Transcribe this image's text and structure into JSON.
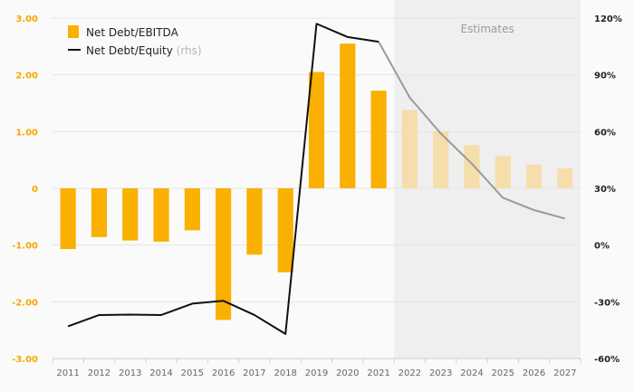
{
  "chart_data": {
    "type": "bar",
    "categories": [
      "2011",
      "2012",
      "2013",
      "2014",
      "2015",
      "2016",
      "2017",
      "2018",
      "2019",
      "2020",
      "2021",
      "2022",
      "2023",
      "2024",
      "2025",
      "2026",
      "2027"
    ],
    "estimates_start_index": 11,
    "estimates_label": "Estimates",
    "series": [
      {
        "name": "Net Debt/EBITDA",
        "type": "bar",
        "axis": "left",
        "color": "#f9b000",
        "estimate_color": "#f6deac",
        "values": [
          -1.07,
          -0.86,
          -0.92,
          -0.94,
          -0.74,
          -2.32,
          -1.17,
          -1.48,
          2.05,
          2.55,
          1.72,
          1.38,
          1.0,
          0.76,
          0.57,
          0.42,
          0.35
        ]
      },
      {
        "name": "Net Debt/Equity",
        "name_suffix": "(rhs)",
        "type": "line",
        "axis": "right",
        "color": "#111111",
        "estimate_color": "#9a9a9a",
        "values": [
          -43,
          -37,
          -36.8,
          -37,
          -31,
          -29.5,
          -37,
          -47,
          117,
          110,
          107.5,
          78,
          59,
          43,
          25,
          18.5,
          14
        ]
      }
    ],
    "y_left": {
      "min": -3,
      "max": 3,
      "ticks": [
        "-3.00",
        "-2.00",
        "-1.00",
        "0",
        "1.00",
        "2.00",
        "3.00"
      ],
      "tick_values": [
        -3,
        -2,
        -1,
        0,
        1,
        2,
        3
      ]
    },
    "y_right": {
      "min": -60,
      "max": 120,
      "ticks": [
        "-60%",
        "-30%",
        "0%",
        "30%",
        "60%",
        "90%",
        "120%"
      ],
      "tick_values": [
        -60,
        -30,
        0,
        30,
        60,
        90,
        120
      ]
    },
    "grid": true,
    "legend_position": "top-left",
    "colors": {
      "bar": "#f9b000",
      "bar_estimate": "#f6deac",
      "line": "#111111",
      "line_estimate": "#9a9a9a",
      "left_axis": "#f5a800",
      "estimates_bg": "#efefef"
    }
  }
}
